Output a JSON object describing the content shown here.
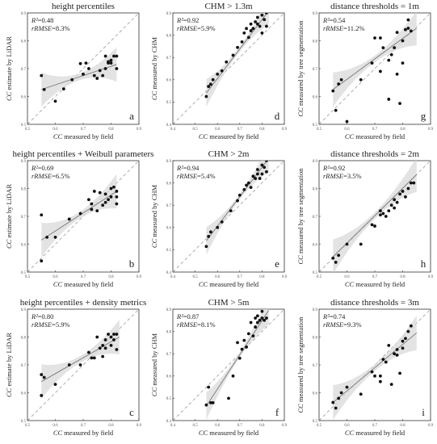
{
  "chart_data": [
    {
      "id": "a",
      "type": "scatter",
      "title": "height percentiles",
      "xlabel": "CC measured by field",
      "ylabel": "CC estimate by LiDAR",
      "xlim": [
        0.5,
        0.9
      ],
      "ylim": [
        0.5,
        0.9
      ],
      "xticks": [
        "0.5",
        "0.6",
        "0.7",
        "0.8",
        "0.9"
      ],
      "yticks": [
        "0.5",
        "0.6",
        "0.7",
        "0.8",
        "0.9"
      ],
      "stats": [
        "R²=0.48",
        "rRMSE=8.3%"
      ],
      "letter": "a",
      "fit": [
        [
          0.55,
          0.625
        ],
        [
          0.82,
          0.715
        ]
      ],
      "points": [
        [
          0.55,
          0.675
        ],
        [
          0.56,
          0.625
        ],
        [
          0.6,
          0.583
        ],
        [
          0.63,
          0.627
        ],
        [
          0.66,
          0.66
        ],
        [
          0.69,
          0.718
        ],
        [
          0.7,
          0.68
        ],
        [
          0.71,
          0.72
        ],
        [
          0.72,
          0.7
        ],
        [
          0.74,
          0.675
        ],
        [
          0.75,
          0.665
        ],
        [
          0.76,
          0.693
        ],
        [
          0.77,
          0.675
        ],
        [
          0.78,
          0.745
        ],
        [
          0.78,
          0.7
        ],
        [
          0.79,
          0.72
        ],
        [
          0.79,
          0.725
        ],
        [
          0.8,
          0.72
        ],
        [
          0.8,
          0.73
        ],
        [
          0.81,
          0.745
        ],
        [
          0.82,
          0.7
        ],
        [
          0.82,
          0.745
        ]
      ]
    },
    {
      "id": "d",
      "type": "scatter",
      "title": "CHM > 1.3m",
      "xlabel": "CC measured by field",
      "ylabel": "CC measured by CHM",
      "xlim": [
        0.4,
        0.9
      ],
      "ylim": [
        0.4,
        0.9
      ],
      "xticks": [
        "0.4",
        "0.5",
        "0.6",
        "0.7",
        "0.8",
        "0.9"
      ],
      "yticks": [
        "0.4",
        "0.5",
        "0.6",
        "0.7",
        "0.8",
        "0.9"
      ],
      "stats": [
        "R²=0.92",
        "rRMSE=5.9%"
      ],
      "letter": "d",
      "fit": [
        [
          0.55,
          0.54
        ],
        [
          0.83,
          0.91
        ]
      ],
      "points": [
        [
          0.55,
          0.525
        ],
        [
          0.56,
          0.57
        ],
        [
          0.57,
          0.58
        ],
        [
          0.58,
          0.6
        ],
        [
          0.6,
          0.625
        ],
        [
          0.62,
          0.64
        ],
        [
          0.64,
          0.68
        ],
        [
          0.67,
          0.71
        ],
        [
          0.69,
          0.745
        ],
        [
          0.71,
          0.77
        ],
        [
          0.72,
          0.81
        ],
        [
          0.73,
          0.83
        ],
        [
          0.74,
          0.79
        ],
        [
          0.75,
          0.82
        ],
        [
          0.75,
          0.85
        ],
        [
          0.76,
          0.83
        ],
        [
          0.77,
          0.86
        ],
        [
          0.78,
          0.85
        ],
        [
          0.78,
          0.88
        ],
        [
          0.79,
          0.84
        ],
        [
          0.8,
          0.81
        ],
        [
          0.8,
          0.89
        ],
        [
          0.81,
          0.87
        ],
        [
          0.81,
          0.91
        ],
        [
          0.82,
          0.92
        ],
        [
          0.82,
          0.9
        ],
        [
          0.82,
          0.84
        ]
      ]
    },
    {
      "id": "g",
      "type": "scatter",
      "title": "distance thresholds = 1m",
      "xlabel": "CC measured by field",
      "ylabel": "CC measured by tree segmentation",
      "xlim": [
        0.5,
        0.9
      ],
      "ylim": [
        0.5,
        0.9
      ],
      "xticks": [
        "0.5",
        "0.6",
        "0.7",
        "0.8",
        "0.9"
      ],
      "yticks": [
        "0.5",
        "0.6",
        "0.7",
        "0.8",
        "0.9"
      ],
      "stats": [
        "R²=0.54",
        "rRMSE=11.2%"
      ],
      "letter": "g",
      "fit": [
        [
          0.55,
          0.625
        ],
        [
          0.85,
          0.845
        ]
      ],
      "points": [
        [
          0.55,
          0.62
        ],
        [
          0.56,
          0.55
        ],
        [
          0.57,
          0.645
        ],
        [
          0.58,
          0.66
        ],
        [
          0.6,
          0.51
        ],
        [
          0.65,
          0.66
        ],
        [
          0.69,
          0.72
        ],
        [
          0.7,
          0.81
        ],
        [
          0.72,
          0.81
        ],
        [
          0.72,
          0.69
        ],
        [
          0.73,
          0.775
        ],
        [
          0.75,
          0.73
        ],
        [
          0.75,
          0.59
        ],
        [
          0.76,
          0.75
        ],
        [
          0.77,
          0.775
        ],
        [
          0.78,
          0.83
        ],
        [
          0.78,
          0.68
        ],
        [
          0.79,
          0.575
        ],
        [
          0.8,
          0.8
        ],
        [
          0.8,
          0.72
        ],
        [
          0.81,
          0.84
        ],
        [
          0.82,
          0.845
        ],
        [
          0.82,
          0.875
        ],
        [
          0.83,
          0.835
        ]
      ]
    },
    {
      "id": "b",
      "type": "scatter",
      "title": "height percentiles + Weibull parameters",
      "xlabel": "CC measured by field",
      "ylabel": "CC estimate by LiDAR",
      "xlim": [
        0.5,
        0.9
      ],
      "ylim": [
        0.5,
        0.9
      ],
      "xticks": [
        "0.5",
        "0.6",
        "0.7",
        "0.8",
        "0.9"
      ],
      "yticks": [
        "0.5",
        "0.6",
        "0.7",
        "0.8",
        "0.9"
      ],
      "stats": [
        "R²=0.69",
        "rRMSE=6.5%"
      ],
      "letter": "b",
      "fit": [
        [
          0.55,
          0.615
        ],
        [
          0.82,
          0.79
        ]
      ],
      "points": [
        [
          0.55,
          0.705
        ],
        [
          0.55,
          0.54
        ],
        [
          0.57,
          0.625
        ],
        [
          0.6,
          0.625
        ],
        [
          0.65,
          0.69
        ],
        [
          0.69,
          0.71
        ],
        [
          0.72,
          0.76
        ],
        [
          0.73,
          0.745
        ],
        [
          0.73,
          0.725
        ],
        [
          0.74,
          0.79
        ],
        [
          0.75,
          0.72
        ],
        [
          0.76,
          0.785
        ],
        [
          0.77,
          0.74
        ],
        [
          0.78,
          0.75
        ],
        [
          0.78,
          0.78
        ],
        [
          0.79,
          0.76
        ],
        [
          0.8,
          0.8
        ],
        [
          0.8,
          0.77
        ],
        [
          0.81,
          0.805
        ],
        [
          0.82,
          0.79
        ],
        [
          0.82,
          0.745
        ],
        [
          0.82,
          0.77
        ]
      ]
    },
    {
      "id": "e",
      "type": "scatter",
      "title": "CHM > 2m",
      "xlabel": "CC measured by field",
      "ylabel": "CC measured by CHM",
      "xlim": [
        0.4,
        0.9
      ],
      "ylim": [
        0.4,
        0.9
      ],
      "xticks": [
        "0.4",
        "0.5",
        "0.6",
        "0.7",
        "0.8",
        "0.9"
      ],
      "yticks": [
        "0.4",
        "0.5",
        "0.6",
        "0.7",
        "0.8",
        "0.9"
      ],
      "stats": [
        "R²=0.94",
        "rRMSE=5.4%"
      ],
      "letter": "e",
      "fit": [
        [
          0.55,
          0.54
        ],
        [
          0.83,
          0.91
        ]
      ],
      "points": [
        [
          0.55,
          0.515
        ],
        [
          0.56,
          0.56
        ],
        [
          0.57,
          0.58
        ],
        [
          0.6,
          0.6
        ],
        [
          0.62,
          0.625
        ],
        [
          0.66,
          0.675
        ],
        [
          0.69,
          0.72
        ],
        [
          0.7,
          0.745
        ],
        [
          0.72,
          0.77
        ],
        [
          0.73,
          0.79
        ],
        [
          0.74,
          0.8
        ],
        [
          0.75,
          0.78
        ],
        [
          0.76,
          0.83
        ],
        [
          0.77,
          0.82
        ],
        [
          0.78,
          0.84
        ],
        [
          0.78,
          0.86
        ],
        [
          0.79,
          0.82
        ],
        [
          0.8,
          0.88
        ],
        [
          0.8,
          0.84
        ],
        [
          0.81,
          0.87
        ],
        [
          0.82,
          0.9
        ],
        [
          0.82,
          0.85
        ]
      ]
    },
    {
      "id": "h",
      "type": "scatter",
      "title": "distance thresholds = 2m",
      "xlabel": "CC measured by field",
      "ylabel": "CC measured by tree segmentation",
      "xlim": [
        0.5,
        0.9
      ],
      "ylim": [
        0.5,
        0.9
      ],
      "xticks": [
        "0.5",
        "0.6",
        "0.7",
        "0.8",
        "0.9"
      ],
      "yticks": [
        "0.5",
        "0.6",
        "0.7",
        "0.8",
        "0.9"
      ],
      "stats": [
        "R²=0.92",
        "rRMSE=3.5%"
      ],
      "letter": "h",
      "fit": [
        [
          0.55,
          0.555
        ],
        [
          0.85,
          0.85
        ]
      ],
      "points": [
        [
          0.55,
          0.55
        ],
        [
          0.56,
          0.535
        ],
        [
          0.57,
          0.56
        ],
        [
          0.6,
          0.6
        ],
        [
          0.65,
          0.6
        ],
        [
          0.69,
          0.67
        ],
        [
          0.7,
          0.665
        ],
        [
          0.72,
          0.72
        ],
        [
          0.72,
          0.705
        ],
        [
          0.73,
          0.71
        ],
        [
          0.74,
          0.7
        ],
        [
          0.75,
          0.72
        ],
        [
          0.76,
          0.74
        ],
        [
          0.77,
          0.73
        ],
        [
          0.77,
          0.76
        ],
        [
          0.78,
          0.75
        ],
        [
          0.79,
          0.78
        ],
        [
          0.8,
          0.79
        ],
        [
          0.81,
          0.77
        ],
        [
          0.82,
          0.8
        ],
        [
          0.83,
          0.82
        ],
        [
          0.84,
          0.82
        ]
      ]
    },
    {
      "id": "c",
      "type": "scatter",
      "title": "height percentiles + density metrics",
      "xlabel": "CC measured by field",
      "ylabel": "CC estimate by LiDAR",
      "xlim": [
        0.5,
        0.9
      ],
      "ylim": [
        0.5,
        0.9
      ],
      "xticks": [
        "0.5",
        "0.6",
        "0.7",
        "0.8",
        "0.9"
      ],
      "yticks": [
        "0.5",
        "0.6",
        "0.7",
        "0.8",
        "0.9"
      ],
      "stats": [
        "R²=0.80",
        "rRMSE=5.9%"
      ],
      "letter": "c",
      "fit": [
        [
          0.55,
          0.64
        ],
        [
          0.83,
          0.8
        ]
      ],
      "points": [
        [
          0.55,
          0.665
        ],
        [
          0.55,
          0.59
        ],
        [
          0.56,
          0.655
        ],
        [
          0.6,
          0.63
        ],
        [
          0.65,
          0.7
        ],
        [
          0.69,
          0.7
        ],
        [
          0.72,
          0.745
        ],
        [
          0.73,
          0.725
        ],
        [
          0.74,
          0.725
        ],
        [
          0.75,
          0.8
        ],
        [
          0.76,
          0.76
        ],
        [
          0.77,
          0.77
        ],
        [
          0.77,
          0.73
        ],
        [
          0.78,
          0.79
        ],
        [
          0.78,
          0.76
        ],
        [
          0.79,
          0.81
        ],
        [
          0.8,
          0.77
        ],
        [
          0.8,
          0.8
        ],
        [
          0.81,
          0.79
        ],
        [
          0.81,
          0.81
        ],
        [
          0.82,
          0.755
        ],
        [
          0.82,
          0.81
        ]
      ]
    },
    {
      "id": "f",
      "type": "scatter",
      "title": "CHM > 5m",
      "xlabel": "CC measured by field",
      "ylabel": "CC measured by CHM",
      "xlim": [
        0.4,
        0.9
      ],
      "ylim": [
        0.4,
        0.9
      ],
      "xticks": [
        "0.4",
        "0.5",
        "0.6",
        "0.7",
        "0.8",
        "0.9"
      ],
      "yticks": [
        "0.4",
        "0.5",
        "0.6",
        "0.7",
        "0.8",
        "0.9"
      ],
      "stats": [
        "R²=0.87",
        "rRMSE=8.1%"
      ],
      "letter": "f",
      "fit": [
        [
          0.55,
          0.465
        ],
        [
          0.83,
          0.895
        ]
      ],
      "points": [
        [
          0.55,
          0.47
        ],
        [
          0.56,
          0.55
        ],
        [
          0.57,
          0.48
        ],
        [
          0.58,
          0.48
        ],
        [
          0.65,
          0.5
        ],
        [
          0.67,
          0.6
        ],
        [
          0.69,
          0.75
        ],
        [
          0.7,
          0.68
        ],
        [
          0.71,
          0.72
        ],
        [
          0.72,
          0.76
        ],
        [
          0.73,
          0.73
        ],
        [
          0.74,
          0.79
        ],
        [
          0.75,
          0.84
        ],
        [
          0.76,
          0.78
        ],
        [
          0.77,
          0.82
        ],
        [
          0.77,
          0.86
        ],
        [
          0.78,
          0.84
        ],
        [
          0.78,
          0.87
        ],
        [
          0.79,
          0.85
        ],
        [
          0.8,
          0.86
        ],
        [
          0.8,
          0.89
        ],
        [
          0.81,
          0.85
        ],
        [
          0.82,
          0.86
        ]
      ]
    },
    {
      "id": "i",
      "type": "scatter",
      "title": "distance thresholds = 3m",
      "xlabel": "CC measured by field",
      "ylabel": "CC measured by tree segmentation",
      "xlim": [
        0.5,
        0.9
      ],
      "ylim": [
        0.5,
        0.9
      ],
      "xticks": [
        "0.5",
        "0.6",
        "0.7",
        "0.8",
        "0.9"
      ],
      "yticks": [
        "0.5",
        "0.6",
        "0.7",
        "0.8",
        "0.9"
      ],
      "stats": [
        "R²=0.74",
        "rRMSE=9.3%"
      ],
      "letter": "i",
      "fit": [
        [
          0.55,
          0.565
        ],
        [
          0.85,
          0.815
        ]
      ],
      "points": [
        [
          0.55,
          0.565
        ],
        [
          0.56,
          0.545
        ],
        [
          0.57,
          0.58
        ],
        [
          0.58,
          0.6
        ],
        [
          0.6,
          0.62
        ],
        [
          0.65,
          0.595
        ],
        [
          0.69,
          0.675
        ],
        [
          0.7,
          0.66
        ],
        [
          0.72,
          0.66
        ],
        [
          0.72,
          0.64
        ],
        [
          0.73,
          0.72
        ],
        [
          0.74,
          0.71
        ],
        [
          0.75,
          0.77
        ],
        [
          0.76,
          0.63
        ],
        [
          0.77,
          0.74
        ],
        [
          0.78,
          0.755
        ],
        [
          0.78,
          0.735
        ],
        [
          0.79,
          0.67
        ],
        [
          0.8,
          0.76
        ],
        [
          0.8,
          0.785
        ],
        [
          0.81,
          0.795
        ],
        [
          0.82,
          0.82
        ],
        [
          0.83,
          0.84
        ]
      ]
    }
  ]
}
